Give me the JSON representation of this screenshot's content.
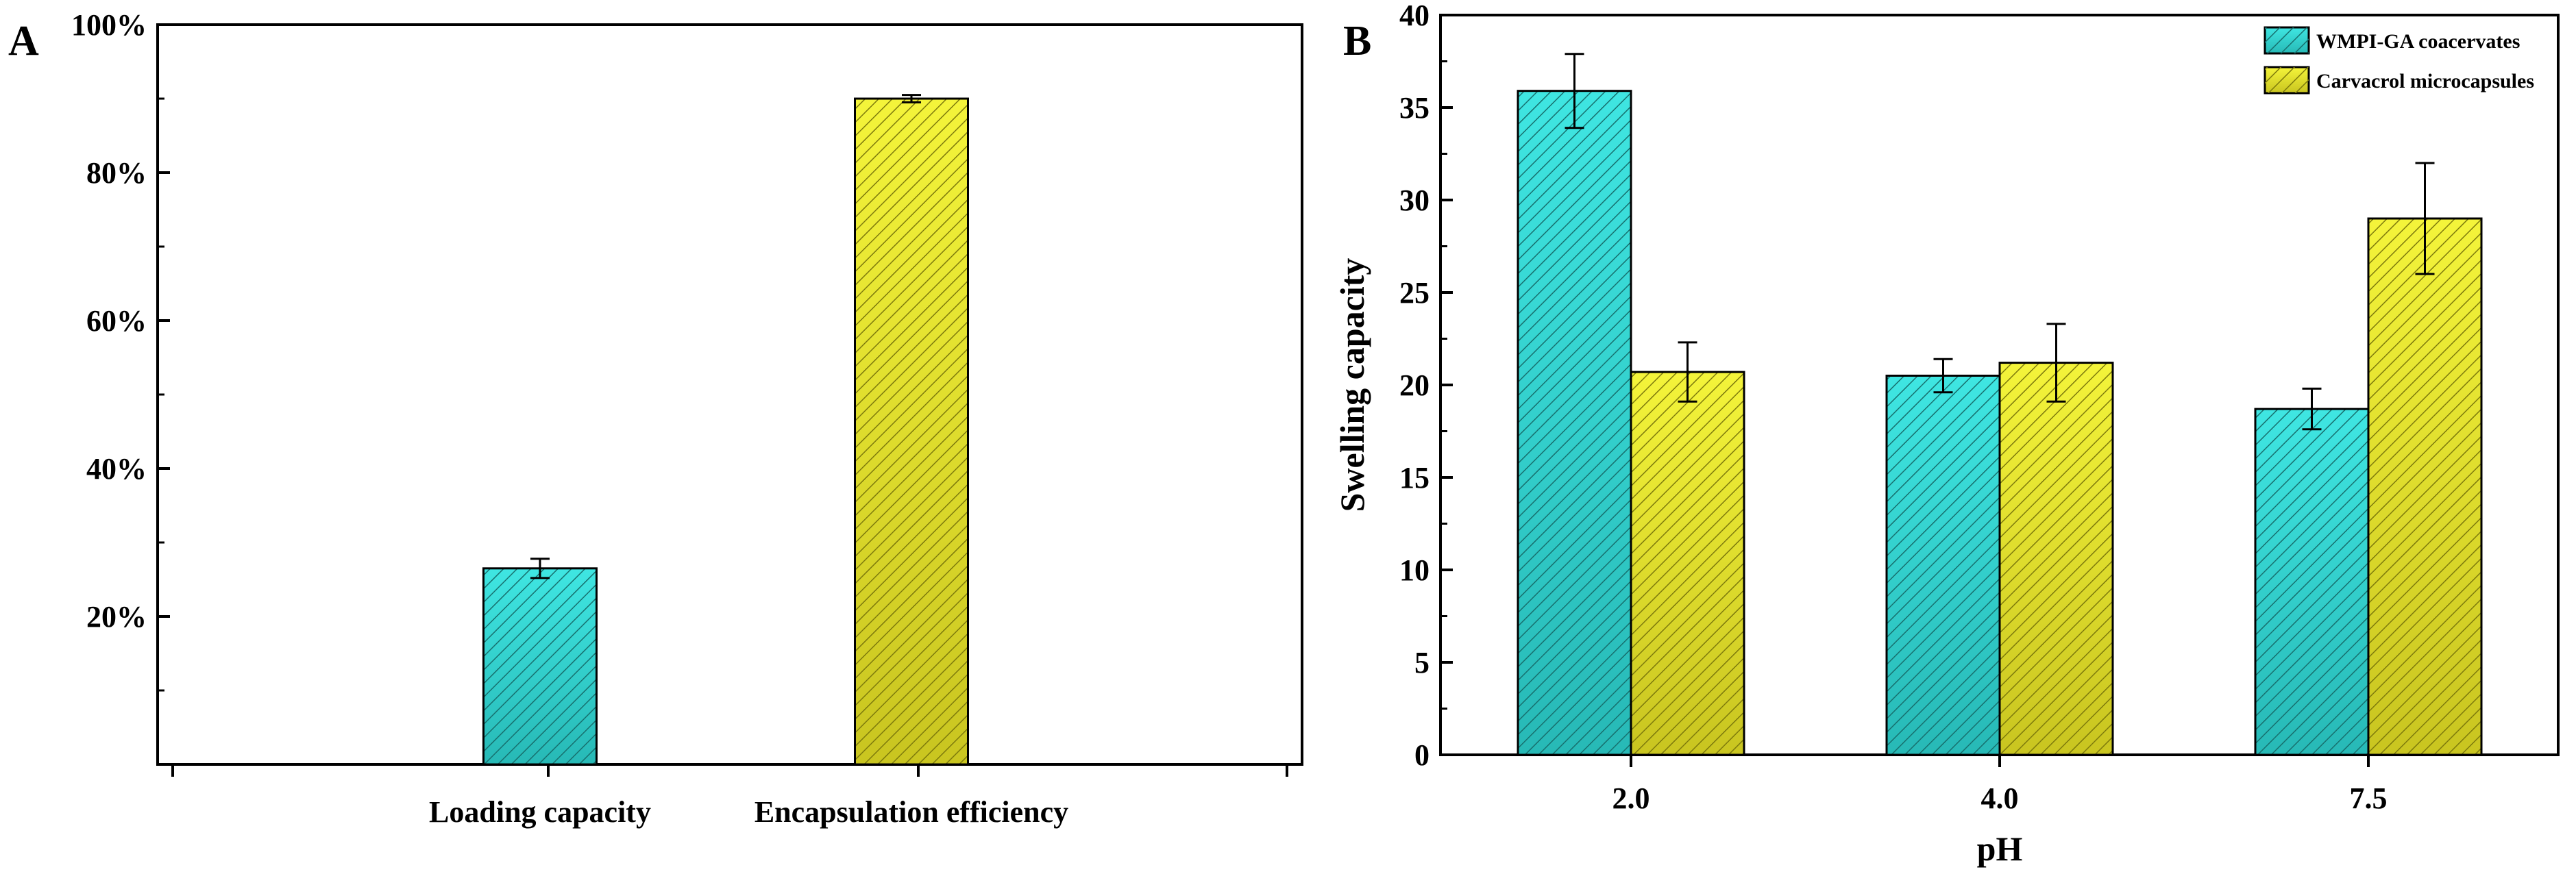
{
  "panels": {
    "A": "A",
    "B": "B"
  },
  "colors": {
    "cyan": "#33dcd8",
    "cyan_dark": "#1f9c9a",
    "yellow": "#ecec2a",
    "yellow_dark": "#b6b41a",
    "axis": "#000000"
  },
  "chart_data": [
    {
      "id": "A",
      "type": "bar",
      "title": "",
      "xlabel": "",
      "ylabel": "",
      "categories": [
        "Loading  capacity",
        "Encapsulation efficiency"
      ],
      "values": [
        26.5,
        90.0
      ],
      "errors": [
        1.3,
        0.5
      ],
      "bar_colors": [
        "cyan",
        "yellow"
      ],
      "ylim": [
        0,
        100
      ],
      "yticks": [
        20,
        40,
        60,
        80,
        100
      ],
      "ytick_labels": [
        "20%",
        "40%",
        "60%",
        "80%",
        "100%"
      ]
    },
    {
      "id": "B",
      "type": "bar",
      "title": "",
      "xlabel": "pH",
      "ylabel": "Swelling capacity",
      "categories": [
        "2.0",
        "4.0",
        "7.5"
      ],
      "series": [
        {
          "name": "WMPI-GA coacervates",
          "color": "cyan",
          "values": [
            35.9,
            20.5,
            18.7
          ],
          "errors": [
            2.0,
            0.9,
            1.1
          ]
        },
        {
          "name": "Carvacrol microcapsules",
          "color": "yellow",
          "values": [
            20.7,
            21.2,
            29.0
          ],
          "errors": [
            1.6,
            2.1,
            3.0
          ]
        }
      ],
      "ylim": [
        0,
        40
      ],
      "yticks": [
        0,
        5,
        10,
        15,
        20,
        25,
        30,
        35,
        40
      ],
      "ytick_labels": [
        "0",
        "5",
        "10",
        "15",
        "20",
        "25",
        "30",
        "35",
        "40"
      ],
      "legend_position": "top-right"
    }
  ]
}
